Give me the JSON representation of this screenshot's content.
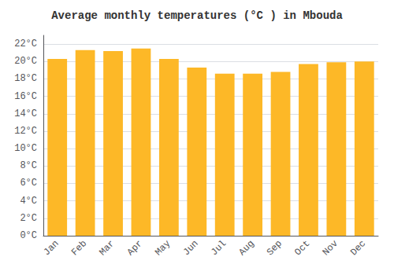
{
  "chart_data": {
    "type": "bar",
    "title": "Average monthly temperatures (°C ) in Mbouda",
    "categories": [
      "Jan",
      "Feb",
      "Mar",
      "Apr",
      "May",
      "Jun",
      "Jul",
      "Aug",
      "Sep",
      "Oct",
      "Nov",
      "Dec"
    ],
    "values": [
      20.3,
      21.3,
      21.2,
      21.5,
      20.3,
      19.3,
      18.6,
      18.6,
      18.8,
      19.7,
      19.9,
      20.0
    ],
    "color": "#FDB827",
    "ylim": [
      0,
      23
    ],
    "yticks": [
      {
        "value": 0,
        "label": "0°C"
      },
      {
        "value": 2,
        "label": "2°C"
      },
      {
        "value": 4,
        "label": "4°C"
      },
      {
        "value": 6,
        "label": "6°C"
      },
      {
        "value": 8,
        "label": "8°C"
      },
      {
        "value": 10,
        "label": "10°C"
      },
      {
        "value": 12,
        "label": "12°C"
      },
      {
        "value": 14,
        "label": "14°C"
      },
      {
        "value": 16,
        "label": "16°C"
      },
      {
        "value": 18,
        "label": "18°C"
      },
      {
        "value": 20,
        "label": "20°C"
      },
      {
        "value": 22,
        "label": "22°C"
      }
    ],
    "grid": true
  }
}
